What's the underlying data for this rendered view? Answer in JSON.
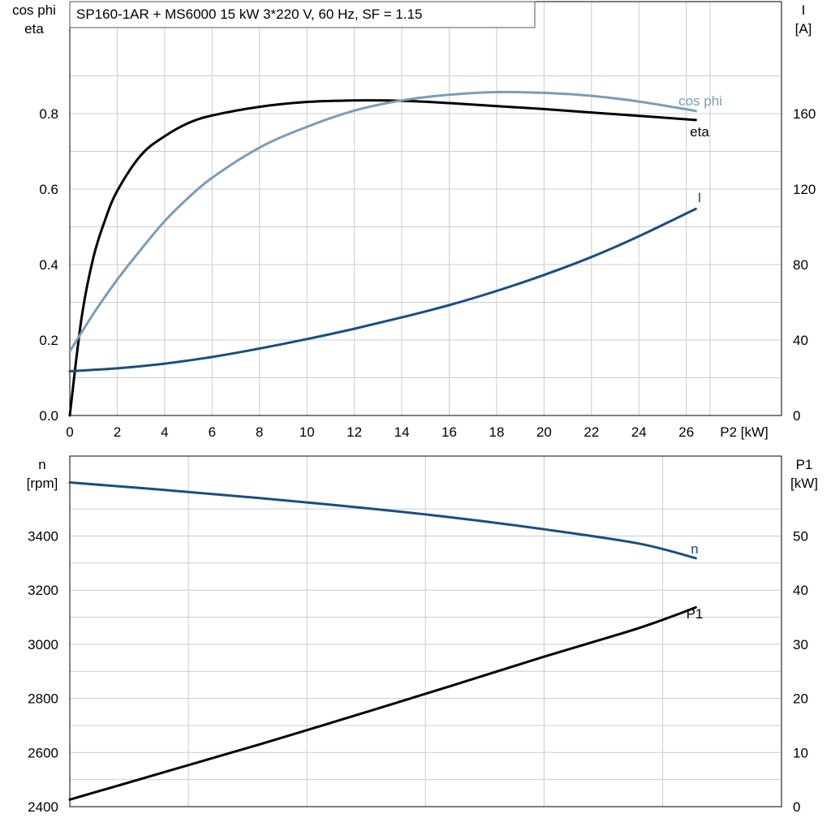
{
  "title": "SP160-1AR + MS6000   15 kW   3*220 V, 60 Hz, SF = 1.15",
  "colors": {
    "eta": "#000000",
    "cos_phi": "#7b9cb8",
    "I": "#1a4e80",
    "n": "#1a4e80",
    "P1": "#000000",
    "grid": "#cccccc"
  },
  "chart_data": [
    {
      "type": "line",
      "title": "SP160-1AR + MS6000   15 kW   3*220 V, 60 Hz, SF = 1.15",
      "xlabel": "P2 [kW]",
      "ylabel_left": [
        "cos phi",
        "eta"
      ],
      "ylabel_right": [
        "I",
        "[A]"
      ],
      "xlim": [
        0,
        28
      ],
      "ylim_left": [
        0,
        1.0
      ],
      "ylim_right": [
        0,
        200
      ],
      "x_ticks": [
        0,
        2,
        4,
        6,
        8,
        10,
        12,
        14,
        16,
        18,
        20,
        22,
        24,
        26
      ],
      "y_ticks_left": [
        "0.0",
        "0.2",
        "0.4",
        "0.6",
        "0.8"
      ],
      "y_ticks_right": [
        "0",
        "40",
        "80",
        "120",
        "160"
      ],
      "grid": true,
      "series": [
        {
          "name": "eta",
          "axis": "left",
          "x": [
            0,
            0.5,
            1,
            1.5,
            2,
            3,
            4,
            5,
            6,
            8,
            10,
            12,
            14,
            16,
            18,
            20,
            22,
            24,
            26.4
          ],
          "y": [
            0,
            0.26,
            0.42,
            0.52,
            0.595,
            0.69,
            0.74,
            0.775,
            0.795,
            0.818,
            0.831,
            0.835,
            0.834,
            0.828,
            0.82,
            0.812,
            0.803,
            0.794,
            0.783
          ]
        },
        {
          "name": "cos phi",
          "axis": "left",
          "x": [
            0,
            1,
            2,
            3,
            4,
            5,
            6,
            8,
            10,
            12,
            14,
            16,
            18,
            20,
            22,
            24,
            26.4
          ],
          "y": [
            0.17,
            0.27,
            0.36,
            0.44,
            0.515,
            0.577,
            0.63,
            0.71,
            0.765,
            0.808,
            0.835,
            0.85,
            0.857,
            0.855,
            0.847,
            0.832,
            0.807
          ]
        },
        {
          "name": "I",
          "axis": "right",
          "x": [
            0,
            2,
            4,
            6,
            8,
            10,
            12,
            14,
            16,
            18,
            20,
            22,
            24,
            26.4
          ],
          "y": [
            23.5,
            25,
            27.5,
            31,
            35.5,
            40.5,
            46,
            52,
            58.5,
            66,
            74.5,
            84,
            95,
            109.5
          ]
        }
      ]
    },
    {
      "type": "line",
      "ylabel_left": [
        "n",
        "[rpm]"
      ],
      "ylabel_right": [
        "P1",
        "[kW]"
      ],
      "xlim": [
        0,
        28
      ],
      "ylim_left": [
        2400,
        3600
      ],
      "ylim_right": [
        0,
        60
      ],
      "y_ticks_left": [
        "2400",
        "2600",
        "2800",
        "3000",
        "3200",
        "3400"
      ],
      "y_ticks_right": [
        "0",
        "10",
        "20",
        "30",
        "40",
        "50"
      ],
      "grid": true,
      "series": [
        {
          "name": "n",
          "axis": "left",
          "x": [
            0,
            4,
            8,
            12,
            16,
            20,
            24,
            26.4
          ],
          "y": [
            3598,
            3570,
            3540,
            3507,
            3470,
            3425,
            3372,
            3318
          ]
        },
        {
          "name": "P1",
          "axis": "right",
          "x": [
            0,
            4,
            8,
            12,
            16,
            20,
            24,
            26.4
          ],
          "y": [
            1.3,
            6.4,
            11.5,
            16.8,
            22.2,
            27.7,
            33,
            36.8
          ]
        }
      ]
    }
  ]
}
